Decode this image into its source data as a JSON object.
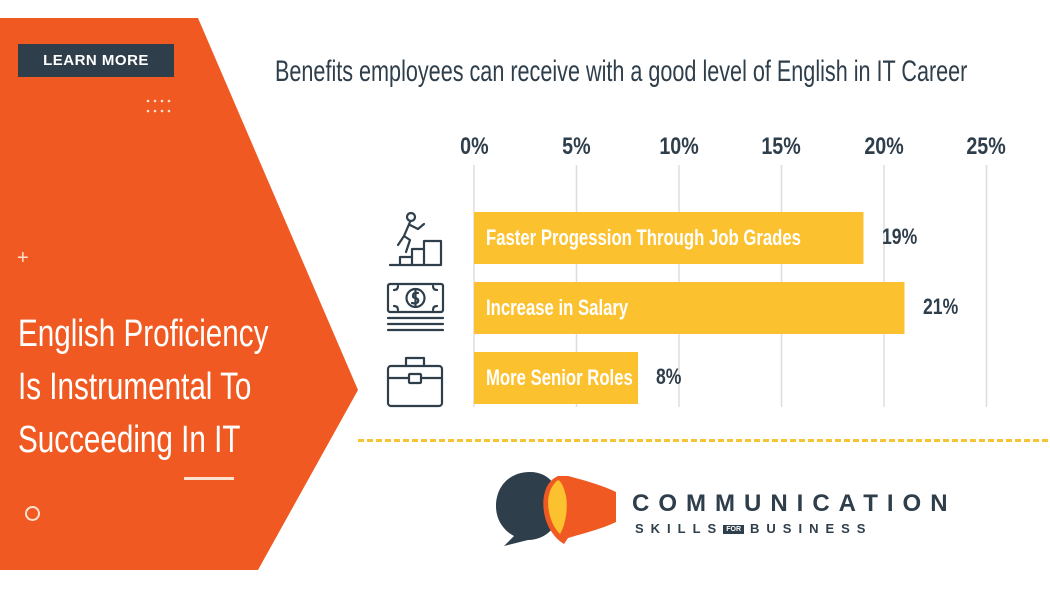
{
  "left_panel": {
    "button_label": "LEARN MORE",
    "plus": "+",
    "headline": [
      "English Proficiency",
      "Is Instrumental To",
      "Succeeding In IT"
    ]
  },
  "colors": {
    "orange": "#f05a22",
    "navy": "#2f3e4b",
    "bar": "#fcc12f",
    "grid": "#dddddd"
  },
  "chart_data": {
    "type": "bar",
    "orientation": "horizontal",
    "title": "Benefits employees can receive with a good level of English in IT Career",
    "categories": [
      "Faster Progession Through Job Grades",
      "Increase in Salary",
      "More Senior Roles"
    ],
    "values": [
      19,
      21,
      8
    ],
    "value_labels": [
      "19%",
      "21%",
      "8%"
    ],
    "xlim": [
      0,
      25
    ],
    "xticks": [
      "0%",
      "5%",
      "10%",
      "15%",
      "20%",
      "25%"
    ],
    "grid": true,
    "icons": [
      "climbing-stairs-icon",
      "money-bill-icon",
      "briefcase-icon"
    ]
  },
  "logo": {
    "line1": "COMMUNICATION",
    "line2_a": "SKILLS",
    "line2_box": "FOR",
    "line2_b": "BUSINESS"
  }
}
